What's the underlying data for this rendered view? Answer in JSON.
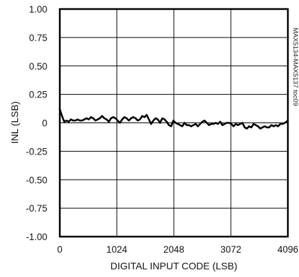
{
  "chart_data": {
    "type": "line",
    "xlabel": "DIGITAL INPUT CODE (LSB)",
    "ylabel": "INL (LSB)",
    "side_note": "MAX5134-MAX5137 toc09",
    "xlim": [
      0,
      4096
    ],
    "ylim": [
      -1.0,
      1.0
    ],
    "x_ticks": [
      0,
      1024,
      2048,
      3072,
      4096
    ],
    "x_tick_labels": [
      "0",
      "1024",
      "2048",
      "3072",
      "4096"
    ],
    "y_ticks": [
      1.0,
      0.75,
      0.5,
      0.25,
      0,
      -0.25,
      -0.5,
      -0.75,
      -1.0
    ],
    "y_tick_labels": [
      "1.00",
      "0.75",
      "0.50",
      "0.25",
      "0",
      "-0.25",
      "-0.50",
      "-0.75",
      "-1.00"
    ],
    "grid": true,
    "series": [
      {
        "color": "#000000",
        "x": [
          0,
          40,
          80,
          120,
          160,
          200,
          240,
          280,
          320,
          360,
          400,
          440,
          480,
          520,
          560,
          600,
          640,
          680,
          720,
          760,
          800,
          840,
          880,
          920,
          960,
          1000,
          1040,
          1080,
          1120,
          1160,
          1200,
          1240,
          1280,
          1320,
          1360,
          1400,
          1440,
          1480,
          1520,
          1560,
          1600,
          1640,
          1680,
          1720,
          1760,
          1800,
          1840,
          1880,
          1920,
          1960,
          2000,
          2040,
          2080,
          2120,
          2160,
          2200,
          2240,
          2280,
          2320,
          2360,
          2400,
          2440,
          2480,
          2520,
          2560,
          2600,
          2640,
          2680,
          2720,
          2760,
          2800,
          2840,
          2880,
          2920,
          2960,
          3000,
          3040,
          3080,
          3120,
          3160,
          3200,
          3240,
          3280,
          3320,
          3360,
          3400,
          3440,
          3480,
          3520,
          3560,
          3600,
          3640,
          3680,
          3720,
          3760,
          3800,
          3840,
          3880,
          3920,
          3960,
          4000,
          4040,
          4096
        ],
        "values": [
          0.12,
          0.06,
          0.01,
          0.02,
          0.01,
          0.03,
          0.02,
          0.02,
          0.03,
          0.02,
          0.02,
          0.03,
          0.04,
          0.03,
          0.05,
          0.04,
          0.02,
          0.03,
          0.04,
          0.06,
          0.04,
          0.03,
          0.01,
          0.04,
          0.05,
          0.04,
          0.02,
          0.0,
          0.03,
          0.05,
          0.04,
          0.02,
          0.04,
          0.05,
          0.04,
          0.02,
          0.03,
          0.06,
          0.05,
          0.07,
          0.03,
          -0.01,
          0.02,
          0.04,
          0.03,
          0.0,
          0.04,
          0.03,
          0.01,
          -0.02,
          -0.03,
          0.02,
          0.0,
          -0.01,
          -0.02,
          -0.03,
          0.0,
          -0.02,
          -0.02,
          -0.03,
          -0.02,
          -0.01,
          -0.03,
          -0.01,
          0.01,
          0.02,
          0.0,
          -0.02,
          -0.01,
          -0.01,
          0.0,
          -0.01,
          0.01,
          -0.02,
          -0.01,
          0.0,
          0.0,
          -0.01,
          -0.03,
          -0.01,
          -0.02,
          -0.01,
          0.0,
          -0.04,
          -0.05,
          -0.03,
          -0.04,
          -0.01,
          -0.02,
          -0.03,
          -0.05,
          -0.04,
          -0.03,
          -0.04,
          -0.04,
          -0.02,
          -0.03,
          -0.02,
          -0.03,
          -0.01,
          -0.01,
          0.0,
          0.02
        ]
      }
    ]
  }
}
